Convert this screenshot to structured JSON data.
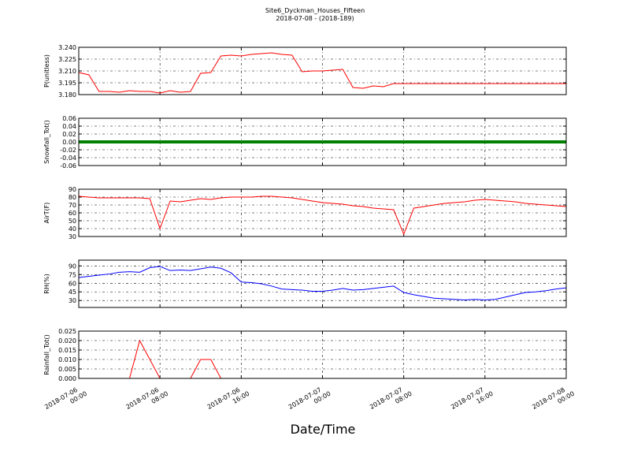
{
  "chart_data": [
    {
      "type": "line",
      "title": "Site6_Dyckman_Houses_Fifteen",
      "subtitle": "2018-07-08 - (2018-189)",
      "ylabel": "P(unitless)",
      "x": [
        "2018-07-06 00:00",
        "2018-07-06 01:00",
        "2018-07-06 02:00",
        "2018-07-06 03:00",
        "2018-07-06 04:00",
        "2018-07-06 05:00",
        "2018-07-06 06:00",
        "2018-07-06 07:00",
        "2018-07-06 08:00",
        "2018-07-06 09:00",
        "2018-07-06 10:00",
        "2018-07-06 11:00",
        "2018-07-06 12:00",
        "2018-07-06 13:00",
        "2018-07-06 14:00",
        "2018-07-06 15:00",
        "2018-07-06 16:00",
        "2018-07-06 17:00",
        "2018-07-06 18:00",
        "2018-07-06 19:00",
        "2018-07-06 20:00",
        "2018-07-06 21:00",
        "2018-07-06 22:00",
        "2018-07-06 23:00",
        "2018-07-07 00:00",
        "2018-07-07 01:00",
        "2018-07-07 02:00",
        "2018-07-07 03:00",
        "2018-07-07 04:00",
        "2018-07-07 05:00",
        "2018-07-07 06:00",
        "2018-07-07 07:00",
        "2018-07-07 08:00",
        "2018-07-07 09:00",
        "2018-07-07 10:00",
        "2018-07-07 11:00",
        "2018-07-07 12:00",
        "2018-07-07 13:00",
        "2018-07-07 14:00",
        "2018-07-07 15:00",
        "2018-07-07 16:00",
        "2018-07-07 17:00",
        "2018-07-07 18:00",
        "2018-07-07 19:00",
        "2018-07-07 20:00",
        "2018-07-07 21:00",
        "2018-07-07 22:00",
        "2018-07-07 23:00",
        "2018-07-08 00:00"
      ],
      "series": [
        {
          "color": "#ff0000",
          "values": [
            3.208,
            3.205,
            3.184,
            3.184,
            3.183,
            3.185,
            3.184,
            3.184,
            3.182,
            3.185,
            3.183,
            3.184,
            3.207,
            3.208,
            3.229,
            3.23,
            3.229,
            3.231,
            3.232,
            3.233,
            3.231,
            3.23,
            3.209,
            3.21,
            3.21,
            3.211,
            3.212,
            3.189,
            3.188,
            3.191,
            3.19,
            3.194,
            3.194,
            3.194,
            3.194,
            3.194,
            3.194,
            3.194,
            3.194,
            3.194,
            3.194,
            3.194,
            3.194,
            3.194,
            3.194,
            3.194,
            3.194,
            3.194,
            3.194
          ]
        }
      ],
      "ylim": [
        3.18,
        3.24
      ],
      "yticks": [
        {
          "value": 3.18,
          "label": "3.180"
        },
        3.195,
        {
          "value": 3.21,
          "label": "3.210"
        },
        3.225,
        {
          "value": 3.24,
          "label": "3.240"
        }
      ]
    },
    {
      "type": "line",
      "ylabel": "Snowfall_Tot()",
      "x": [
        "2018-07-06 00:00",
        "2018-07-06 01:00",
        "2018-07-06 02:00",
        "2018-07-06 03:00",
        "2018-07-06 04:00",
        "2018-07-06 05:00",
        "2018-07-06 06:00",
        "2018-07-06 07:00",
        "2018-07-06 08:00",
        "2018-07-06 09:00",
        "2018-07-06 10:00",
        "2018-07-06 11:00",
        "2018-07-06 12:00",
        "2018-07-06 13:00",
        "2018-07-06 14:00",
        "2018-07-06 15:00",
        "2018-07-06 16:00",
        "2018-07-06 17:00",
        "2018-07-06 18:00",
        "2018-07-06 19:00",
        "2018-07-06 20:00",
        "2018-07-06 21:00",
        "2018-07-06 22:00",
        "2018-07-06 23:00",
        "2018-07-07 00:00",
        "2018-07-07 01:00",
        "2018-07-07 02:00",
        "2018-07-07 03:00",
        "2018-07-07 04:00",
        "2018-07-07 05:00",
        "2018-07-07 06:00",
        "2018-07-07 07:00",
        "2018-07-07 08:00",
        "2018-07-07 09:00",
        "2018-07-07 10:00",
        "2018-07-07 11:00",
        "2018-07-07 12:00",
        "2018-07-07 13:00",
        "2018-07-07 14:00",
        "2018-07-07 15:00",
        "2018-07-07 16:00",
        "2018-07-07 17:00",
        "2018-07-07 18:00",
        "2018-07-07 19:00",
        "2018-07-07 20:00",
        "2018-07-07 21:00",
        "2018-07-07 22:00",
        "2018-07-07 23:00",
        "2018-07-08 00:00"
      ],
      "series": [
        {
          "color": "#008000",
          "values": [
            0,
            0,
            0,
            0,
            0,
            0,
            0,
            0,
            0,
            0,
            0,
            0,
            0,
            0,
            0,
            0,
            0,
            0,
            0,
            0,
            0,
            0,
            0,
            0,
            0,
            0,
            0,
            0,
            0,
            0,
            0,
            0,
            0,
            0,
            0,
            0,
            0,
            0,
            0,
            0,
            0,
            0,
            0,
            0,
            0,
            0,
            0,
            0,
            0
          ]
        }
      ],
      "ylim": [
        -0.06,
        0.06
      ],
      "yticks": [
        -0.06,
        -0.04,
        -0.02,
        {
          "value": 0,
          "label": "0.00"
        },
        0.02,
        0.04,
        0.06
      ]
    },
    {
      "type": "line",
      "ylabel": "AirT(F)",
      "x": [
        "2018-07-06 00:00",
        "2018-07-06 01:00",
        "2018-07-06 02:00",
        "2018-07-06 03:00",
        "2018-07-06 04:00",
        "2018-07-06 05:00",
        "2018-07-06 06:00",
        "2018-07-06 07:00",
        "2018-07-06 08:00",
        "2018-07-06 09:00",
        "2018-07-06 10:00",
        "2018-07-06 11:00",
        "2018-07-06 12:00",
        "2018-07-06 13:00",
        "2018-07-06 14:00",
        "2018-07-06 15:00",
        "2018-07-06 16:00",
        "2018-07-06 17:00",
        "2018-07-06 18:00",
        "2018-07-06 19:00",
        "2018-07-06 20:00",
        "2018-07-06 21:00",
        "2018-07-06 22:00",
        "2018-07-06 23:00",
        "2018-07-07 00:00",
        "2018-07-07 01:00",
        "2018-07-07 02:00",
        "2018-07-07 03:00",
        "2018-07-07 04:00",
        "2018-07-07 05:00",
        "2018-07-07 06:00",
        "2018-07-07 07:00",
        "2018-07-07 08:00",
        "2018-07-07 09:00",
        "2018-07-07 10:00",
        "2018-07-07 11:00",
        "2018-07-07 12:00",
        "2018-07-07 13:00",
        "2018-07-07 14:00",
        "2018-07-07 15:00",
        "2018-07-07 16:00",
        "2018-07-07 17:00",
        "2018-07-07 18:00",
        "2018-07-07 19:00",
        "2018-07-07 20:00",
        "2018-07-07 21:00",
        "2018-07-07 22:00",
        "2018-07-07 23:00",
        "2018-07-08 00:00"
      ],
      "series": [
        {
          "color": "#ff0000",
          "values": [
            81,
            80,
            79,
            79,
            79,
            79,
            79,
            78,
            40,
            75,
            74,
            76,
            78,
            77,
            79,
            80,
            80,
            80,
            81,
            81,
            80,
            79,
            77,
            75,
            73,
            72,
            71,
            69,
            68,
            66,
            65,
            64,
            33,
            66,
            68,
            70,
            72,
            73,
            74,
            76,
            77,
            76,
            75,
            74,
            72,
            71,
            70,
            69,
            68
          ]
        }
      ],
      "ylim": [
        30,
        90
      ],
      "yticks": [
        30,
        40,
        50,
        60,
        70,
        80,
        90
      ]
    },
    {
      "type": "line",
      "ylabel": "RH(%)",
      "x": [
        "2018-07-06 00:00",
        "2018-07-06 01:00",
        "2018-07-06 02:00",
        "2018-07-06 03:00",
        "2018-07-06 04:00",
        "2018-07-06 05:00",
        "2018-07-06 06:00",
        "2018-07-06 07:00",
        "2018-07-06 08:00",
        "2018-07-06 09:00",
        "2018-07-06 10:00",
        "2018-07-06 11:00",
        "2018-07-06 12:00",
        "2018-07-06 13:00",
        "2018-07-06 14:00",
        "2018-07-06 15:00",
        "2018-07-06 16:00",
        "2018-07-06 17:00",
        "2018-07-06 18:00",
        "2018-07-06 19:00",
        "2018-07-06 20:00",
        "2018-07-06 21:00",
        "2018-07-06 22:00",
        "2018-07-06 23:00",
        "2018-07-07 00:00",
        "2018-07-07 01:00",
        "2018-07-07 02:00",
        "2018-07-07 03:00",
        "2018-07-07 04:00",
        "2018-07-07 05:00",
        "2018-07-07 06:00",
        "2018-07-07 07:00",
        "2018-07-07 08:00",
        "2018-07-07 09:00",
        "2018-07-07 10:00",
        "2018-07-07 11:00",
        "2018-07-07 12:00",
        "2018-07-07 13:00",
        "2018-07-07 14:00",
        "2018-07-07 15:00",
        "2018-07-07 16:00",
        "2018-07-07 17:00",
        "2018-07-07 18:00",
        "2018-07-07 19:00",
        "2018-07-07 20:00",
        "2018-07-07 21:00",
        "2018-07-07 22:00",
        "2018-07-07 23:00",
        "2018-07-08 00:00"
      ],
      "series": [
        {
          "color": "#0000ff",
          "values": [
            70,
            72,
            74,
            76,
            79,
            80,
            79,
            87,
            89,
            82,
            83,
            82,
            85,
            88,
            86,
            78,
            62,
            61,
            59,
            55,
            50,
            49,
            48,
            46,
            46,
            48,
            51,
            48,
            49,
            51,
            53,
            55,
            44,
            40,
            37,
            34,
            33,
            32,
            31,
            32,
            31,
            32,
            36,
            40,
            44,
            45,
            47,
            50,
            52
          ]
        }
      ],
      "ylim": [
        18,
        100
      ],
      "yticks": [
        30,
        45,
        60,
        75,
        90
      ]
    },
    {
      "type": "line",
      "ylabel": "Rainfall_Tot()",
      "xlabel": "Date/Time",
      "x": [
        "2018-07-06 00:00",
        "2018-07-06 01:00",
        "2018-07-06 02:00",
        "2018-07-06 03:00",
        "2018-07-06 04:00",
        "2018-07-06 05:00",
        "2018-07-06 06:00",
        "2018-07-06 07:00",
        "2018-07-06 08:00",
        "2018-07-06 09:00",
        "2018-07-06 10:00",
        "2018-07-06 11:00",
        "2018-07-06 12:00",
        "2018-07-06 13:00",
        "2018-07-06 14:00",
        "2018-07-06 15:00",
        "2018-07-06 16:00",
        "2018-07-06 17:00",
        "2018-07-06 18:00",
        "2018-07-06 19:00",
        "2018-07-06 20:00",
        "2018-07-06 21:00",
        "2018-07-06 22:00",
        "2018-07-06 23:00",
        "2018-07-07 00:00",
        "2018-07-07 01:00",
        "2018-07-07 02:00",
        "2018-07-07 03:00",
        "2018-07-07 04:00",
        "2018-07-07 05:00",
        "2018-07-07 06:00",
        "2018-07-07 07:00",
        "2018-07-07 08:00",
        "2018-07-07 09:00",
        "2018-07-07 10:00",
        "2018-07-07 11:00",
        "2018-07-07 12:00",
        "2018-07-07 13:00",
        "2018-07-07 14:00",
        "2018-07-07 15:00",
        "2018-07-07 16:00",
        "2018-07-07 17:00",
        "2018-07-07 18:00",
        "2018-07-07 19:00",
        "2018-07-07 20:00",
        "2018-07-07 21:00",
        "2018-07-07 22:00",
        "2018-07-07 23:00",
        "2018-07-08 00:00"
      ],
      "series": [
        {
          "color": "#ff0000",
          "values": [
            0,
            0,
            0,
            0,
            0,
            0,
            0.02,
            0.01,
            0,
            0,
            0,
            0,
            0.01,
            0.01,
            0,
            0,
            0,
            0,
            0,
            0,
            0,
            0,
            0,
            0,
            0,
            0,
            0,
            0,
            0,
            0,
            0,
            0,
            0,
            0,
            0,
            0,
            0,
            0,
            0,
            0,
            0,
            0,
            0,
            0,
            0,
            0,
            0,
            0,
            0
          ]
        }
      ],
      "ylim": [
        0,
        0.025
      ],
      "yticks": [
        {
          "value": 0,
          "label": "0.000"
        },
        0.005,
        {
          "value": 0.01,
          "label": "0.010"
        },
        0.015,
        {
          "value": 0.02,
          "label": "0.020"
        },
        0.025
      ],
      "xlim": [
        "2018-07-06 00:00",
        "2018-07-08 00:00"
      ],
      "xticks": [
        "2018-07-06 00:00",
        "2018-07-06 08:00",
        "2018-07-06 16:00",
        "2018-07-07 00:00",
        "2018-07-07 08:00",
        "2018-07-07 16:00",
        "2018-07-08 00:00"
      ]
    }
  ]
}
